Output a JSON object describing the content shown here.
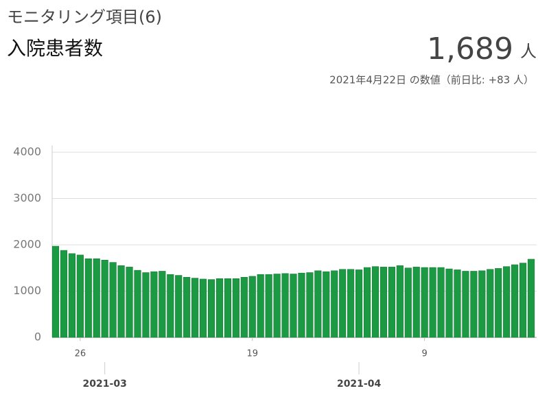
{
  "header": {
    "section": "モニタリング項目(6)",
    "title": "入院患者数",
    "value": 1689,
    "value_label": "1,689",
    "unit": "人",
    "note": "2021年4月22日 の数値（前日比: +83 人）"
  },
  "chart_data": {
    "type": "bar",
    "color": "#1b9a43",
    "grid": true,
    "x": [
      "2021-02-23",
      "2021-02-24",
      "2021-02-25",
      "2021-02-26",
      "2021-02-27",
      "2021-02-28",
      "2021-03-01",
      "2021-03-02",
      "2021-03-03",
      "2021-03-04",
      "2021-03-05",
      "2021-03-06",
      "2021-03-07",
      "2021-03-08",
      "2021-03-09",
      "2021-03-10",
      "2021-03-11",
      "2021-03-12",
      "2021-03-13",
      "2021-03-14",
      "2021-03-15",
      "2021-03-16",
      "2021-03-17",
      "2021-03-18",
      "2021-03-19",
      "2021-03-20",
      "2021-03-21",
      "2021-03-22",
      "2021-03-23",
      "2021-03-24",
      "2021-03-25",
      "2021-03-26",
      "2021-03-27",
      "2021-03-28",
      "2021-03-29",
      "2021-03-30",
      "2021-03-31",
      "2021-04-01",
      "2021-04-02",
      "2021-04-03",
      "2021-04-04",
      "2021-04-05",
      "2021-04-06",
      "2021-04-07",
      "2021-04-08",
      "2021-04-09",
      "2021-04-10",
      "2021-04-11",
      "2021-04-12",
      "2021-04-13",
      "2021-04-14",
      "2021-04-15",
      "2021-04-16",
      "2021-04-17",
      "2021-04-18",
      "2021-04-19",
      "2021-04-20",
      "2021-04-21",
      "2021-04-22"
    ],
    "values": [
      1970,
      1880,
      1810,
      1780,
      1700,
      1700,
      1670,
      1620,
      1550,
      1520,
      1450,
      1400,
      1420,
      1430,
      1360,
      1340,
      1300,
      1280,
      1260,
      1250,
      1270,
      1270,
      1270,
      1300,
      1320,
      1360,
      1360,
      1370,
      1380,
      1370,
      1390,
      1400,
      1440,
      1420,
      1440,
      1470,
      1470,
      1460,
      1510,
      1530,
      1520,
      1520,
      1550,
      1500,
      1520,
      1510,
      1510,
      1510,
      1480,
      1460,
      1430,
      1430,
      1440,
      1470,
      1490,
      1530,
      1570,
      1606,
      1689
    ],
    "ylim": [
      0,
      4000
    ],
    "yticks": [
      0,
      1000,
      2000,
      3000,
      4000
    ],
    "xticks": [
      {
        "value": "2021-02-26",
        "label": "26"
      },
      {
        "value": "2021-03-19",
        "label": "19"
      },
      {
        "value": "2021-04-09",
        "label": "9"
      }
    ],
    "month_ticks": [
      {
        "value": "2021-03-01",
        "label": "2021-03"
      },
      {
        "value": "2021-04-01",
        "label": "2021-04"
      }
    ]
  }
}
